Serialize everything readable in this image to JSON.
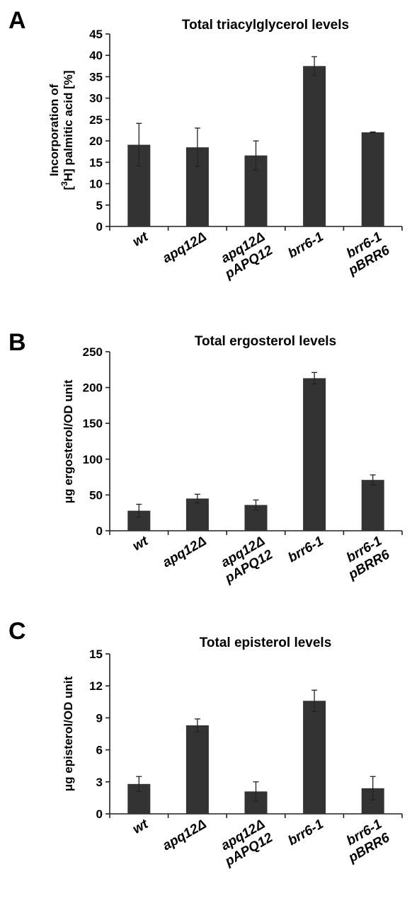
{
  "chart_data": [
    {
      "type": "bar",
      "panel": "A",
      "title": "Total triacylglycerol levels",
      "ylabel_lines": [
        "Incorporation of",
        "[3H] palmitic acid [%]"
      ],
      "ylabel_superscript": "3",
      "ylim": [
        0,
        45
      ],
      "yticks": [
        0,
        5,
        10,
        15,
        20,
        25,
        30,
        35,
        40,
        45
      ],
      "categories": [
        [
          "wt"
        ],
        [
          "apq12Δ"
        ],
        [
          "apq12Δ",
          "pAPQ12"
        ],
        [
          "brr6-1"
        ],
        [
          "brr6-1",
          "pBRR6"
        ]
      ],
      "values": [
        19.1,
        18.5,
        16.6,
        37.5,
        22.0
      ],
      "errors": [
        5.0,
        4.5,
        3.4,
        2.2,
        0.1
      ],
      "grid": false
    },
    {
      "type": "bar",
      "panel": "B",
      "title": "Total ergosterol levels",
      "ylabel_lines": [
        "μg ergosterol/OD unit"
      ],
      "ylim": [
        0,
        250
      ],
      "yticks": [
        0,
        50,
        100,
        150,
        200,
        250
      ],
      "categories": [
        [
          "wt"
        ],
        [
          "apq12Δ"
        ],
        [
          "apq12Δ",
          "pAPQ12"
        ],
        [
          "brr6-1"
        ],
        [
          "brr6-1",
          "pBRR6"
        ]
      ],
      "values": [
        28,
        45,
        36,
        213,
        71
      ],
      "errors": [
        9,
        6,
        7,
        8,
        7
      ],
      "grid": false
    },
    {
      "type": "bar",
      "panel": "C",
      "title": "Total episterol levels",
      "ylabel_lines": [
        "μg episterol/OD unit"
      ],
      "ylim": [
        0,
        15
      ],
      "yticks": [
        0,
        3,
        6,
        9,
        12,
        15
      ],
      "categories": [
        [
          "wt"
        ],
        [
          "apq12Δ"
        ],
        [
          "apq12Δ",
          "pAPQ12"
        ],
        [
          "brr6-1"
        ],
        [
          "brr6-1",
          "pBRR6"
        ]
      ],
      "values": [
        2.8,
        8.3,
        2.1,
        10.6,
        2.4
      ],
      "errors": [
        0.7,
        0.6,
        0.9,
        1.0,
        1.1
      ],
      "grid": false
    }
  ],
  "colors": {
    "bar": "#333333",
    "axis": "#222222"
  }
}
